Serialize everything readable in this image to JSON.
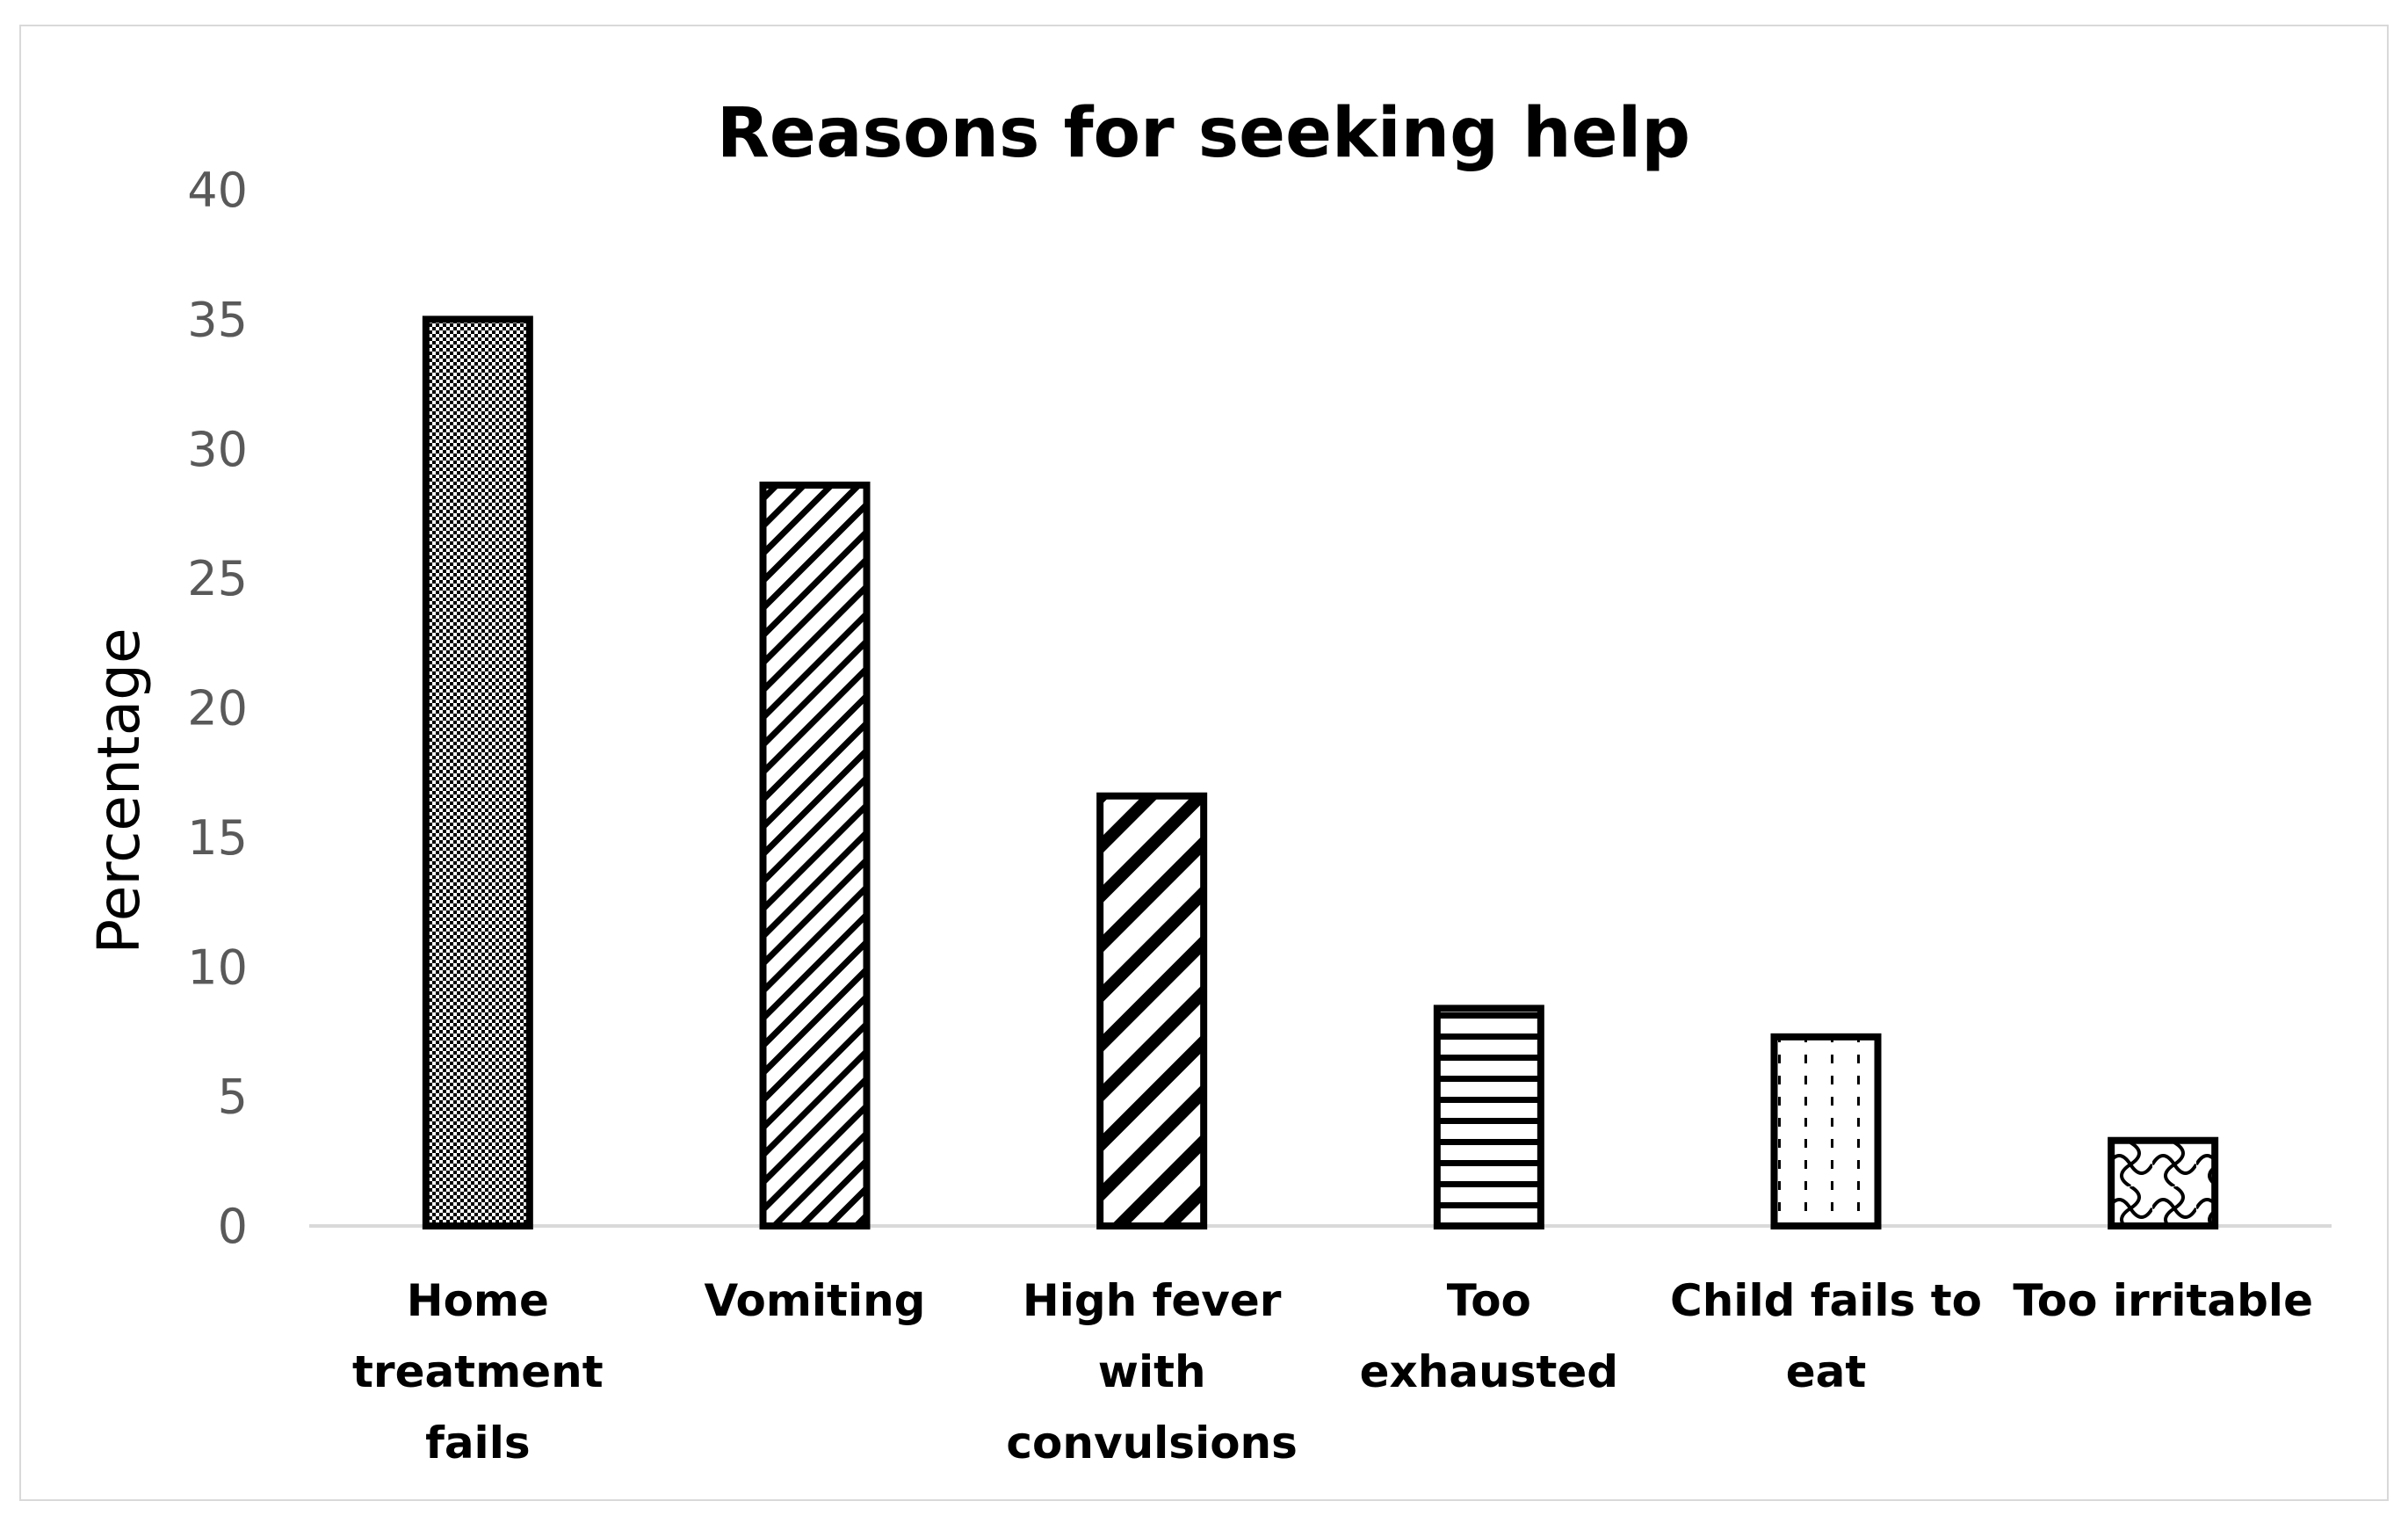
{
  "chart_data": {
    "type": "bar",
    "title": "Reasons for seeking help",
    "xlabel": "",
    "ylabel": "Percentage",
    "ylim": [
      0,
      40
    ],
    "yticks": [
      0,
      5,
      10,
      15,
      20,
      25,
      30,
      35,
      40
    ],
    "grid": false,
    "legend": "none",
    "categories": [
      [
        "Home",
        "treatment",
        "fails"
      ],
      [
        "Vomiting"
      ],
      [
        "High fever",
        "with",
        "convulsions"
      ],
      [
        "Too",
        "exhausted"
      ],
      [
        "Child fails to",
        "eat"
      ],
      [
        "Too irritable"
      ]
    ],
    "values": [
      35,
      28.6,
      16.6,
      8.4,
      7.3,
      3.3
    ],
    "bar_patterns": [
      "fine-dots",
      "narrow-diagonal",
      "wide-diagonal",
      "horizontal-lines",
      "dashed-vertical",
      "weave"
    ],
    "colors": {
      "bar_stroke": "#000000",
      "bar_fill": "#ffffff",
      "axis": "#d9d9d9",
      "tick_text": "#595959"
    }
  }
}
